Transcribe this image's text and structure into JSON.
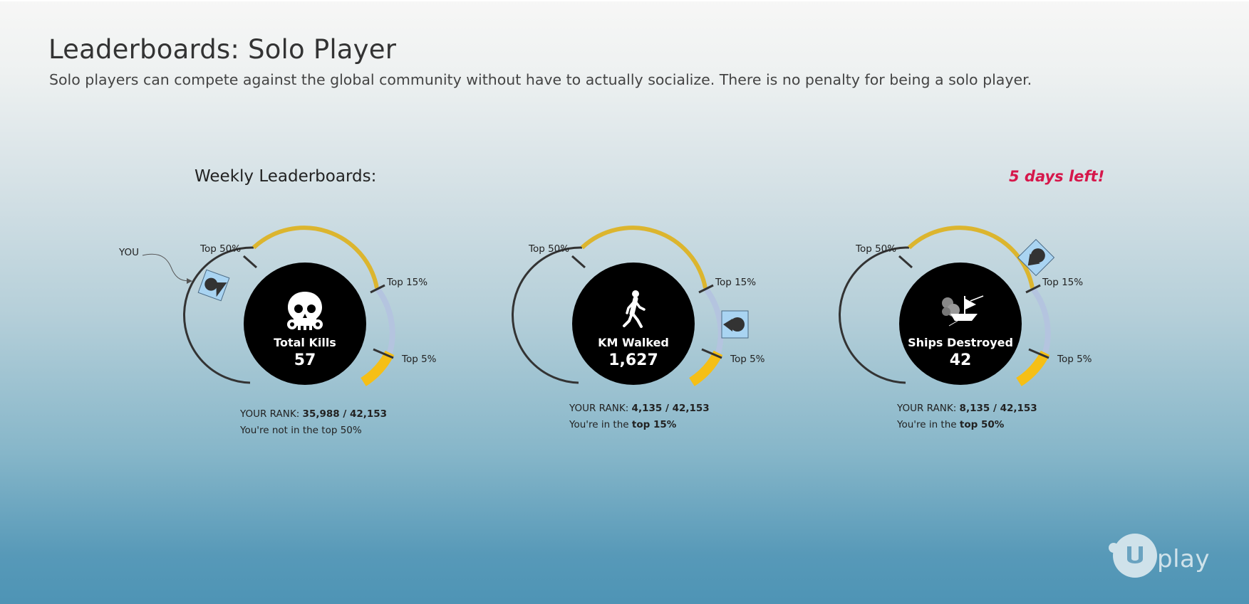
{
  "page": {
    "title": "Leaderboards: Solo Player",
    "subtitle": "Solo players can compete against the global community without have to actually socialize. There is no penalty for being a solo player."
  },
  "weekly": {
    "heading": "Weekly Leaderboards:",
    "time_left": "5 days left!"
  },
  "you_label": "YOU",
  "boards": [
    {
      "icon": "skull-icon",
      "label": "Total Kills",
      "value": "57",
      "ticks": [
        "Top 50%",
        "Top 15%",
        "Top 5%"
      ],
      "rank_prefix": "YOUR RANK: ",
      "rank": "35,988 / 42,153",
      "status": "You're not in the top 50%",
      "status_prefix": "",
      "status_bold": ""
    },
    {
      "icon": "walking-person-icon",
      "label": "KM Walked",
      "value": "1,627",
      "ticks": [
        "Top 50%",
        "Top 15%",
        "Top 5%"
      ],
      "rank_prefix": "YOUR RANK: ",
      "rank": "4,135 / 42,153",
      "status": "",
      "status_prefix": "You're in the ",
      "status_bold": "top 15%"
    },
    {
      "icon": "ship-icon",
      "label": "Ships Destroyed",
      "value": "42",
      "ticks": [
        "Top 50%",
        "Top 15%",
        "Top 5%"
      ],
      "rank_prefix": "YOUR RANK: ",
      "rank": "8,135 / 42,153",
      "status": "",
      "status_prefix": "You're in the ",
      "status_bold": "top 50%"
    }
  ],
  "colors": {
    "gold_arc": "#dcb52e",
    "yellow_arc": "#f5bf16",
    "blue_arc": "#b4c4df",
    "dark_arc": "#333333",
    "accent_red": "#d6174b",
    "marker_fill": "#a9d4f2"
  },
  "brand": {
    "logo_text": "play"
  }
}
